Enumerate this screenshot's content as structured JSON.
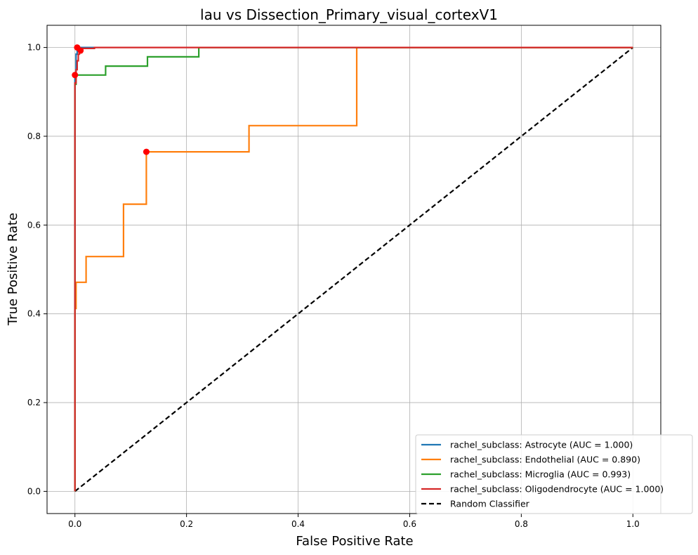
{
  "chart_data": {
    "type": "line",
    "title": "lau vs Dissection_Primary_visual_cortexV1",
    "xlabel": "False Positive Rate",
    "ylabel": "True Positive Rate",
    "xlim": [
      -0.05,
      1.05
    ],
    "ylim": [
      -0.05,
      1.05
    ],
    "xticks": [
      "0.0",
      "0.2",
      "0.4",
      "0.6",
      "0.8",
      "1.0"
    ],
    "yticks": [
      "0.0",
      "0.2",
      "0.4",
      "0.6",
      "0.8",
      "1.0"
    ],
    "grid": true,
    "legend_position": "bottom-right",
    "series": [
      {
        "name": "rachel_subclass: Astrocyte (AUC = 1.000)",
        "color": "#1f77b4",
        "x": [
          0,
          0,
          0.002,
          0.002,
          0.004,
          0.004,
          0.035
        ],
        "y": [
          0,
          0.93,
          0.93,
          0.985,
          0.985,
          1.0,
          1.0
        ],
        "point": [
          0.004,
          1.0
        ]
      },
      {
        "name": "rachel_subclass: Endothelial (AUC = 0.890)",
        "color": "#ff7f0e",
        "x": [
          0,
          0,
          0.002,
          0.002,
          0.02,
          0.02,
          0.087,
          0.087,
          0.128,
          0.128,
          0.312,
          0.312,
          0.505,
          0.505,
          1.0
        ],
        "y": [
          0,
          0.412,
          0.412,
          0.471,
          0.471,
          0.529,
          0.529,
          0.647,
          0.647,
          0.765,
          0.765,
          0.824,
          0.824,
          1.0,
          1.0
        ],
        "point": [
          0.128,
          0.765
        ]
      },
      {
        "name": "rachel_subclass: Microglia (AUC = 0.993)",
        "color": "#2ca02c",
        "x": [
          0,
          0,
          0.002,
          0.002,
          0.055,
          0.055,
          0.13,
          0.13,
          0.222,
          0.222,
          1.0
        ],
        "y": [
          0,
          0.917,
          0.917,
          0.938,
          0.938,
          0.958,
          0.958,
          0.979,
          0.979,
          1.0,
          1.0
        ],
        "point": [
          0.0,
          0.938
        ]
      },
      {
        "name": "rachel_subclass: Oligodendrocyte (AUC = 1.000)",
        "color": "#d62728",
        "x": [
          0,
          0,
          0.002,
          0.002,
          0.004,
          0.004,
          0.006,
          0.006,
          0.008,
          0.008,
          0.01,
          0.01,
          0.035,
          0.035,
          1.0
        ],
        "y": [
          0,
          0.92,
          0.92,
          0.95,
          0.95,
          0.97,
          0.97,
          0.985,
          0.985,
          0.993,
          0.993,
          0.998,
          0.998,
          1.0,
          1.0
        ],
        "point": [
          0.01,
          0.993
        ]
      },
      {
        "name": "Random Classifier",
        "color": "#000000",
        "dashed": true,
        "x": [
          0,
          1
        ],
        "y": [
          0,
          1
        ]
      }
    ]
  }
}
